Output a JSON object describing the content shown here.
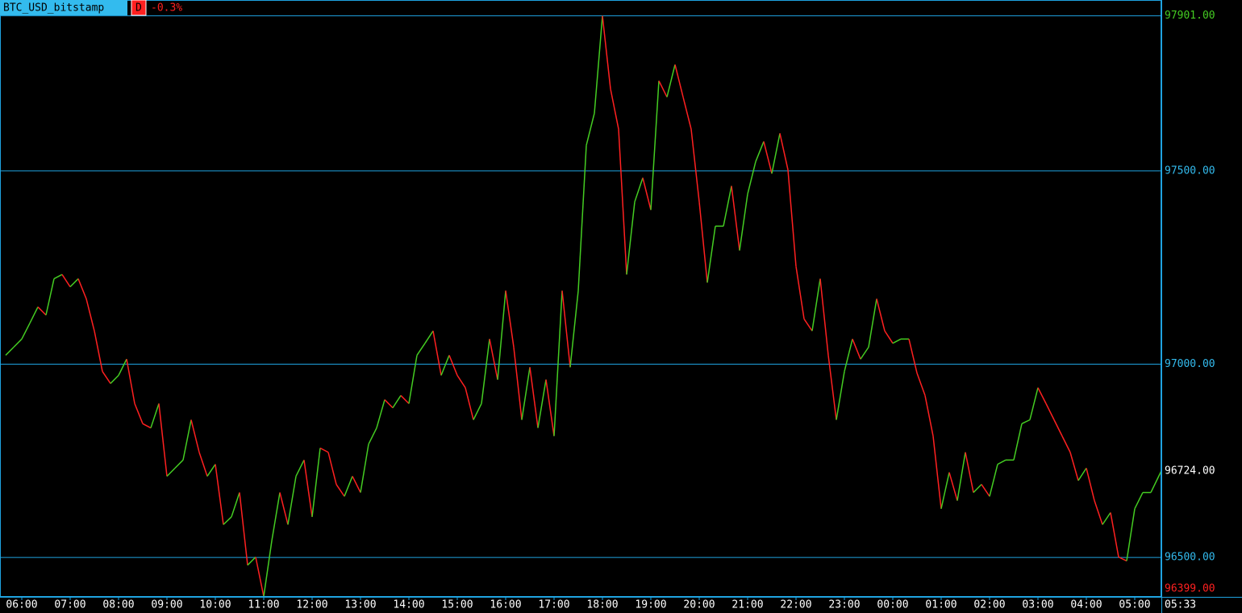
{
  "header": {
    "symbol": "BTC_USD_bitstamp",
    "period": "D",
    "change": "-0.3%"
  },
  "chart_data": {
    "type": "line",
    "x": [
      "05:40",
      "05:50",
      "06:00",
      "06:10",
      "06:20",
      "06:30",
      "06:40",
      "06:50",
      "07:00",
      "07:10",
      "07:20",
      "07:30",
      "07:40",
      "07:50",
      "08:00",
      "08:10",
      "08:20",
      "08:30",
      "08:40",
      "08:50",
      "09:00",
      "09:10",
      "09:20",
      "09:30",
      "09:40",
      "09:50",
      "10:00",
      "10:10",
      "10:20",
      "10:30",
      "10:40",
      "10:50",
      "11:00",
      "11:10",
      "11:20",
      "11:30",
      "11:40",
      "11:50",
      "12:00",
      "12:10",
      "12:20",
      "12:30",
      "12:40",
      "12:50",
      "13:00",
      "13:10",
      "13:20",
      "13:30",
      "13:40",
      "13:50",
      "14:00",
      "14:10",
      "14:20",
      "14:30",
      "14:40",
      "14:50",
      "15:00",
      "15:10",
      "15:20",
      "15:30",
      "15:40",
      "15:50",
      "16:00",
      "16:10",
      "16:20",
      "16:30",
      "16:40",
      "16:50",
      "17:00",
      "17:10",
      "17:20",
      "17:30",
      "17:40",
      "17:50",
      "18:00",
      "18:10",
      "18:20",
      "18:30",
      "18:40",
      "18:50",
      "19:00",
      "19:10",
      "19:20",
      "19:30",
      "19:40",
      "19:50",
      "20:00",
      "20:10",
      "20:20",
      "20:30",
      "20:40",
      "20:50",
      "21:00",
      "21:10",
      "21:20",
      "21:30",
      "21:40",
      "21:50",
      "22:00",
      "22:10",
      "22:20",
      "22:30",
      "22:40",
      "22:50",
      "23:00",
      "23:10",
      "23:20",
      "23:30",
      "23:40",
      "23:50",
      "00:00",
      "00:10",
      "00:20",
      "00:30",
      "00:40",
      "00:50",
      "01:00",
      "01:10",
      "01:20",
      "01:30",
      "01:40",
      "01:50",
      "02:00",
      "02:10",
      "02:20",
      "02:30",
      "02:40",
      "02:50",
      "03:00",
      "03:10",
      "03:20",
      "03:30",
      "03:40",
      "03:50",
      "04:00",
      "04:10",
      "04:20",
      "04:30",
      "04:40",
      "04:50",
      "05:00",
      "05:10",
      "05:20",
      "05:33"
    ],
    "values": [
      97023,
      97044,
      97065,
      97106,
      97148,
      97127,
      97221,
      97232,
      97200,
      97221,
      97169,
      97086,
      96981,
      96950,
      96971,
      97013,
      96898,
      96846,
      96835,
      96898,
      96710,
      96731,
      96752,
      96856,
      96772,
      96710,
      96741,
      96585,
      96605,
      96668,
      96480,
      96501,
      96399,
      96543,
      96668,
      96585,
      96710,
      96752,
      96605,
      96783,
      96772,
      96689,
      96658,
      96710,
      96668,
      96793,
      96835,
      96908,
      96887,
      96919,
      96898,
      97023,
      97054,
      97086,
      96971,
      97023,
      96971,
      96939,
      96856,
      96898,
      97065,
      96960,
      97190,
      97044,
      96856,
      96992,
      96835,
      96960,
      96814,
      97190,
      96992,
      97190,
      97566,
      97649,
      97901,
      97712,
      97608,
      97232,
      97420,
      97482,
      97399,
      97733,
      97691,
      97775,
      97691,
      97608,
      97420,
      97211,
      97357,
      97357,
      97461,
      97294,
      97440,
      97524,
      97576,
      97493,
      97597,
      97503,
      97253,
      97117,
      97086,
      97221,
      97023,
      96856,
      96981,
      97065,
      97013,
      97044,
      97169,
      97086,
      97054,
      97065,
      97065,
      96977,
      96919,
      96814,
      96626,
      96720,
      96647,
      96772,
      96668,
      96689,
      96658,
      96741,
      96752,
      96752,
      96846,
      96856,
      96939,
      96898,
      96856,
      96814,
      96772,
      96699,
      96731,
      96647,
      96585,
      96616,
      96501,
      96491,
      96626,
      96668,
      96668,
      96724
    ],
    "up_color": "#44cc22",
    "down_color": "#ff2020",
    "xlim": [
      "05:33",
      "05:33"
    ],
    "xticks": [
      "06:00",
      "07:00",
      "08:00",
      "09:00",
      "10:00",
      "11:00",
      "12:00",
      "13:00",
      "14:00",
      "15:00",
      "16:00",
      "17:00",
      "18:00",
      "19:00",
      "20:00",
      "21:00",
      "22:00",
      "23:00",
      "00:00",
      "01:00",
      "02:00",
      "03:00",
      "04:00",
      "05:00"
    ],
    "current_time": "05:33",
    "ylim": [
      96398,
      97942
    ],
    "yticks": [
      {
        "value": 97500,
        "label": "97500.00"
      },
      {
        "value": 97000,
        "label": "97000.00"
      },
      {
        "value": 96500,
        "label": "96500.00"
      }
    ],
    "high": {
      "value": 97901,
      "label": "97901.00"
    },
    "low": {
      "value": 96399,
      "label": "96399.00"
    },
    "last": {
      "value": 96724,
      "label": "96724.00"
    },
    "grid_color": "#1fa3e0",
    "tick_color": "#33bbee",
    "high_color": "#44cc22",
    "low_color": "#ff2020",
    "last_color": "#ffffff"
  }
}
